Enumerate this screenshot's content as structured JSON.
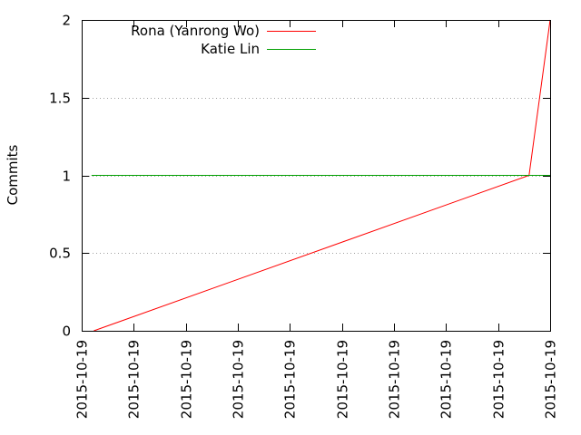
{
  "chart_data": {
    "type": "line",
    "title": "",
    "xlabel": "",
    "ylabel": "Commits",
    "x_tick_labels": [
      "2015-10-19",
      "2015-10-19",
      "2015-10-19",
      "2015-10-19",
      "2015-10-19",
      "2015-10-19",
      "2015-10-19",
      "2015-10-19",
      "2015-10-19",
      "2015-10-19"
    ],
    "y_tick_labels": [
      "0",
      "0.5",
      "1",
      "1.5",
      "2"
    ],
    "yticks": [
      0,
      0.5,
      1,
      1.5,
      2
    ],
    "ylim": [
      0,
      2
    ],
    "xlim": [
      0,
      1
    ],
    "grid": "horizontal dotted",
    "legend_position": "top-left",
    "series": [
      {
        "name": "Rona (Yanrong Wo)",
        "color": "#ff0000",
        "points": [
          {
            "x": 0.026,
            "y": 0
          },
          {
            "x": 0.955,
            "y": 1
          },
          {
            "x": 1.0,
            "y": 2
          }
        ]
      },
      {
        "name": "Katie Lin",
        "color": "#00a000",
        "points": [
          {
            "x": 0.021,
            "y": 1
          },
          {
            "x": 1.0,
            "y": 1
          }
        ]
      }
    ]
  }
}
